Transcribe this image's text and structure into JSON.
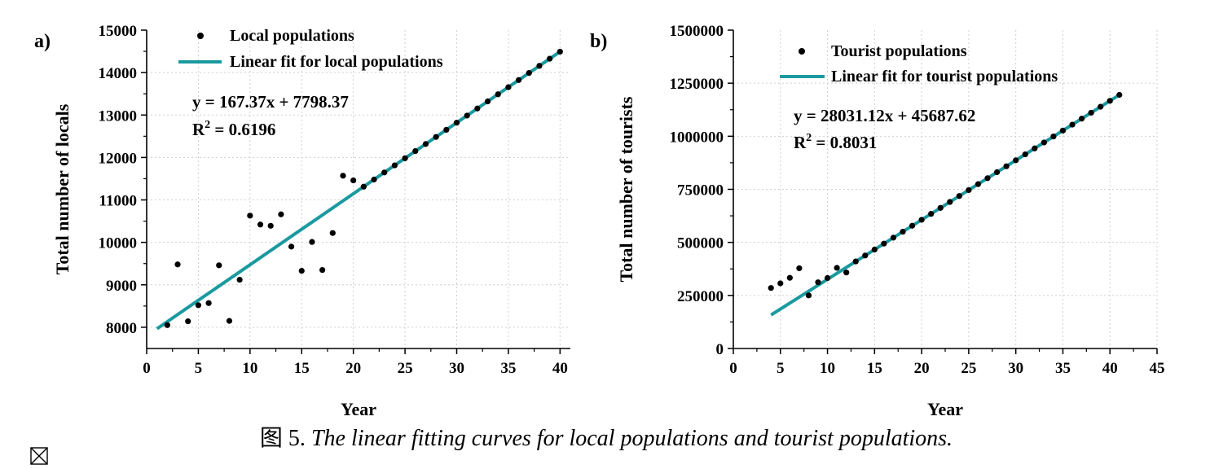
{
  "chart_data": [
    {
      "type": "scatter",
      "panel_label": "a)",
      "xlabel": "Year",
      "ylabel": "Total number of locals",
      "xlim": [
        0,
        41
      ],
      "ylim": [
        7500,
        15000
      ],
      "xticks": [
        0,
        5,
        10,
        15,
        20,
        25,
        30,
        35,
        40
      ],
      "yticks": [
        8000,
        9000,
        10000,
        11000,
        12000,
        13000,
        14000,
        15000
      ],
      "grid": true,
      "legend_position": "top-left",
      "colors": {
        "points": "#000000",
        "fit": "#1a9aa0"
      },
      "series": [
        {
          "name": "Local   populations",
          "kind": "scatter",
          "x": [
            2,
            3,
            4,
            5,
            6,
            7,
            8,
            9,
            10,
            11,
            12,
            13,
            14,
            15,
            16,
            17,
            18,
            19,
            20,
            21,
            22,
            23,
            24,
            25,
            26,
            27,
            28,
            29,
            30,
            31,
            32,
            33,
            34,
            35,
            36,
            37,
            38,
            39,
            40
          ],
          "y": [
            8050,
            9480,
            8140,
            8520,
            8570,
            9460,
            8150,
            9120,
            10630,
            10420,
            10390,
            10660,
            9900,
            9330,
            10010,
            9350,
            10220,
            11570,
            11460,
            11312,
            11480,
            11647,
            11815,
            11982,
            12150,
            12317,
            12484,
            12652,
            12819,
            12987,
            13154,
            13321,
            13489,
            13656,
            13824,
            13991,
            14158,
            14326,
            14493
          ]
        },
        {
          "name": "Linear fit for local populations",
          "kind": "line",
          "x": [
            1,
            40
          ],
          "y": [
            7965.74,
            14493.17
          ]
        }
      ],
      "annotations": [
        "y = 167.37x + 7798.37",
        "0.6196"
      ]
    },
    {
      "type": "scatter",
      "panel_label": "b)",
      "xlabel": "Year",
      "ylabel": "Total number of tourists",
      "xlim": [
        0,
        45
      ],
      "ylim": [
        0,
        1500000
      ],
      "xticks": [
        0,
        5,
        10,
        15,
        20,
        25,
        30,
        35,
        40,
        45
      ],
      "yticks": [
        0,
        250000,
        500000,
        750000,
        1000000,
        1250000,
        1500000
      ],
      "grid": true,
      "legend_position": "top-left",
      "colors": {
        "points": "#000000",
        "fit": "#1a9aa0"
      },
      "series": [
        {
          "name": "Tourist populations",
          "kind": "scatter",
          "x": [
            4,
            5,
            6,
            7,
            8,
            9,
            10,
            11,
            12,
            13,
            14,
            15,
            16,
            17,
            18,
            19,
            20,
            21,
            22,
            23,
            24,
            25,
            26,
            27,
            28,
            29,
            30,
            31,
            32,
            33,
            34,
            35,
            36,
            37,
            38,
            39,
            40,
            41
          ],
          "y": [
            285000,
            307000,
            333000,
            378000,
            250000,
            312000,
            332000,
            380000,
            358000,
            410112,
            438143,
            466174,
            494206,
            522237,
            550268,
            578299,
            606310,
            634341,
            662372,
            690403,
            718434,
            746465,
            774496,
            802527,
            830558,
            858589,
            886620,
            914651,
            942682,
            970714,
            998745,
            1026776,
            1054807,
            1082838,
            1110869,
            1138900,
            1166931,
            1194962
          ]
        },
        {
          "name": "Linear fit for tourist populations",
          "kind": "line",
          "x": [
            4,
            41
          ],
          "y": [
            157812.1,
            1194963.5
          ]
        }
      ],
      "annotations": [
        "y = 28031.12x + 45687.62",
        "0.8031"
      ]
    }
  ],
  "rsq_prefix": "R",
  "rsq_sup": "2",
  "rsq_eq": " = ",
  "caption": {
    "prefix": "图 5.",
    "text": " The linear fitting curves for local populations and tourist populations."
  }
}
